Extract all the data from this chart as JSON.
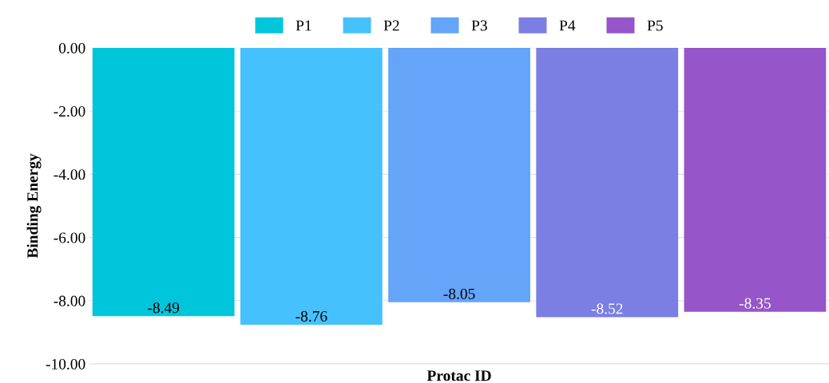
{
  "chart_data": {
    "type": "bar",
    "xlabel": "Protac ID",
    "ylabel": "Binding Energy",
    "categories": [
      null
    ],
    "series": [
      {
        "name": "P1",
        "color": "#00c6dc",
        "values": [
          -8.49
        ]
      },
      {
        "name": "P2",
        "color": "#45c2fd",
        "values": [
          -8.76
        ]
      },
      {
        "name": "P3",
        "color": "#64a4f9",
        "values": [
          -8.05
        ]
      },
      {
        "name": "P4",
        "color": "#7b7ee2",
        "values": [
          -8.52
        ]
      },
      {
        "name": "P5",
        "color": "#9655c8",
        "values": [
          -8.35
        ]
      }
    ],
    "ylim": [
      -10,
      0
    ],
    "yticks": [
      {
        "value": 0,
        "label": "0.00"
      },
      {
        "value": -2,
        "label": "-2.00"
      },
      {
        "value": -4,
        "label": "-4.00"
      },
      {
        "value": -6,
        "label": "-6.00"
      },
      {
        "value": -8,
        "label": "-8.00"
      },
      {
        "value": -10,
        "label": "-10.00"
      }
    ],
    "grid": "y",
    "legend": "top",
    "data_labels": true
  }
}
